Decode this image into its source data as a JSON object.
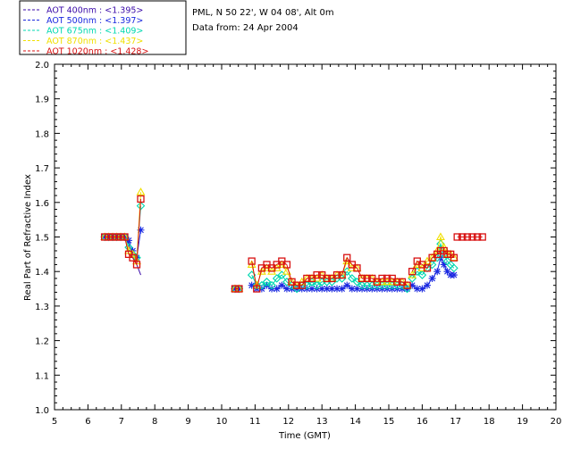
{
  "header": {
    "site_line": "PML, N 50 22', W 04 08', Alt 0m",
    "date_line": "Data from: 24 Apr 2004"
  },
  "legend": [
    {
      "label": "AOT  400nm : <1.395>",
      "color": "#3a0aa8",
      "marker": "line"
    },
    {
      "label": "AOT  500nm : <1.397>",
      "color": "#1a28e0",
      "marker": "star"
    },
    {
      "label": "AOT  675nm : <1.409>",
      "color": "#00d8b0",
      "marker": "diamond"
    },
    {
      "label": "AOT  870nm : <1.437>",
      "color": "#f0e000",
      "marker": "triangle"
    },
    {
      "label": "AOT 1020nm : <1.428>",
      "color": "#d81010",
      "marker": "square"
    }
  ],
  "chart_data": {
    "type": "line",
    "title": "",
    "xlabel": "Time (GMT)",
    "ylabel": "Real Part of Refractive Index",
    "xlim": [
      5,
      20
    ],
    "ylim": [
      1.0,
      2.0
    ],
    "x_ticks": [
      "5",
      "6",
      "7",
      "8",
      "9",
      "10",
      "11",
      "12",
      "13",
      "14",
      "15",
      "16",
      "17",
      "18",
      "19",
      "20"
    ],
    "y_ticks": [
      "1.0",
      "1.1",
      "1.2",
      "1.3",
      "1.4",
      "1.5",
      "1.6",
      "1.7",
      "1.8",
      "1.9",
      "2.0"
    ],
    "grid": false,
    "legend_position": "top-left outside",
    "series": [
      {
        "name": "AOT  400nm : <1.395>",
        "color": "#3a0aa8",
        "marker": "line",
        "segments": [
          [
            [
              6.5,
              1.5
            ],
            [
              6.62,
              1.5
            ],
            [
              6.74,
              1.5
            ],
            [
              6.86,
              1.5
            ],
            [
              6.98,
              1.5
            ],
            [
              7.1,
              1.5
            ],
            [
              7.22,
              1.48
            ],
            [
              7.34,
              1.44
            ],
            [
              7.46,
              1.42
            ],
            [
              7.58,
              1.39
            ]
          ]
        ]
      },
      {
        "name": "AOT  500nm : <1.397>",
        "color": "#1a28e0",
        "marker": "star",
        "segments": [
          [
            [
              6.5,
              1.5
            ],
            [
              6.62,
              1.5
            ],
            [
              6.74,
              1.5
            ],
            [
              6.86,
              1.5
            ],
            [
              6.98,
              1.5
            ],
            [
              7.1,
              1.5
            ],
            [
              7.22,
              1.49
            ],
            [
              7.34,
              1.46
            ],
            [
              7.46,
              1.44
            ],
            [
              7.58,
              1.52
            ]
          ],
          [
            [
              10.4,
              1.35
            ],
            [
              10.52,
              1.35
            ]
          ],
          [
            [
              10.9,
              1.36
            ],
            [
              11.05,
              1.35
            ],
            [
              11.2,
              1.35
            ],
            [
              11.35,
              1.36
            ],
            [
              11.5,
              1.35
            ],
            [
              11.65,
              1.35
            ],
            [
              11.8,
              1.36
            ],
            [
              11.95,
              1.35
            ],
            [
              12.1,
              1.35
            ],
            [
              12.25,
              1.35
            ],
            [
              12.4,
              1.35
            ],
            [
              12.55,
              1.35
            ],
            [
              12.7,
              1.35
            ],
            [
              12.85,
              1.35
            ],
            [
              13.0,
              1.35
            ],
            [
              13.15,
              1.35
            ],
            [
              13.3,
              1.35
            ],
            [
              13.45,
              1.35
            ],
            [
              13.6,
              1.35
            ],
            [
              13.75,
              1.36
            ],
            [
              13.9,
              1.35
            ],
            [
              14.05,
              1.35
            ],
            [
              14.2,
              1.35
            ],
            [
              14.35,
              1.35
            ],
            [
              14.5,
              1.35
            ],
            [
              14.65,
              1.35
            ],
            [
              14.8,
              1.35
            ],
            [
              14.95,
              1.35
            ],
            [
              15.1,
              1.35
            ],
            [
              15.25,
              1.35
            ],
            [
              15.4,
              1.35
            ],
            [
              15.55,
              1.35
            ]
          ],
          [
            [
              15.7,
              1.36
            ],
            [
              15.85,
              1.35
            ],
            [
              16.0,
              1.35
            ],
            [
              16.15,
              1.36
            ],
            [
              16.3,
              1.38
            ],
            [
              16.45,
              1.4
            ],
            [
              16.55,
              1.44
            ],
            [
              16.65,
              1.42
            ],
            [
              16.75,
              1.4
            ],
            [
              16.85,
              1.39
            ],
            [
              16.95,
              1.39
            ]
          ]
        ]
      },
      {
        "name": "AOT  675nm : <1.409>",
        "color": "#00d8b0",
        "marker": "diamond",
        "segments": [
          [
            [
              6.5,
              1.5
            ],
            [
              6.62,
              1.5
            ],
            [
              6.74,
              1.5
            ],
            [
              6.86,
              1.5
            ],
            [
              6.98,
              1.5
            ],
            [
              7.1,
              1.5
            ],
            [
              7.22,
              1.47
            ],
            [
              7.34,
              1.45
            ],
            [
              7.46,
              1.44
            ],
            [
              7.58,
              1.59
            ]
          ],
          [
            [
              10.4,
              1.35
            ],
            [
              10.52,
              1.35
            ]
          ],
          [
            [
              10.9,
              1.39
            ],
            [
              11.05,
              1.36
            ],
            [
              11.2,
              1.36
            ],
            [
              11.35,
              1.37
            ],
            [
              11.5,
              1.36
            ],
            [
              11.65,
              1.38
            ],
            [
              11.8,
              1.39
            ],
            [
              11.95,
              1.37
            ],
            [
              12.1,
              1.36
            ],
            [
              12.25,
              1.35
            ],
            [
              12.4,
              1.36
            ],
            [
              12.55,
              1.36
            ],
            [
              12.7,
              1.37
            ],
            [
              12.85,
              1.36
            ],
            [
              13.0,
              1.37
            ],
            [
              13.15,
              1.37
            ],
            [
              13.3,
              1.37
            ],
            [
              13.45,
              1.38
            ],
            [
              13.6,
              1.38
            ],
            [
              13.75,
              1.4
            ],
            [
              13.9,
              1.38
            ],
            [
              14.05,
              1.37
            ],
            [
              14.2,
              1.36
            ],
            [
              14.35,
              1.36
            ],
            [
              14.5,
              1.36
            ],
            [
              14.65,
              1.36
            ],
            [
              14.8,
              1.36
            ],
            [
              14.95,
              1.36
            ],
            [
              15.1,
              1.36
            ],
            [
              15.25,
              1.36
            ],
            [
              15.4,
              1.36
            ],
            [
              15.55,
              1.35
            ]
          ],
          [
            [
              15.7,
              1.38
            ],
            [
              15.85,
              1.4
            ],
            [
              16.0,
              1.39
            ],
            [
              16.15,
              1.41
            ],
            [
              16.3,
              1.42
            ],
            [
              16.45,
              1.44
            ],
            [
              16.55,
              1.48
            ],
            [
              16.65,
              1.45
            ],
            [
              16.75,
              1.43
            ],
            [
              16.85,
              1.42
            ],
            [
              16.95,
              1.41
            ]
          ]
        ]
      },
      {
        "name": "AOT  870nm : <1.437>",
        "color": "#f0e000",
        "marker": "triangle",
        "segments": [
          [
            [
              6.5,
              1.5
            ],
            [
              6.62,
              1.5
            ],
            [
              6.74,
              1.5
            ],
            [
              6.86,
              1.5
            ],
            [
              6.98,
              1.5
            ],
            [
              7.1,
              1.5
            ],
            [
              7.22,
              1.46
            ],
            [
              7.34,
              1.45
            ],
            [
              7.46,
              1.43
            ],
            [
              7.58,
              1.63
            ]
          ],
          [
            [
              10.4,
              1.35
            ],
            [
              10.52,
              1.35
            ]
          ],
          [
            [
              10.9,
              1.42
            ],
            [
              11.05,
              1.36
            ],
            [
              11.2,
              1.4
            ],
            [
              11.35,
              1.41
            ],
            [
              11.5,
              1.4
            ],
            [
              11.65,
              1.41
            ],
            [
              11.8,
              1.42
            ],
            [
              11.95,
              1.4
            ],
            [
              12.1,
              1.37
            ],
            [
              12.25,
              1.36
            ],
            [
              12.4,
              1.37
            ],
            [
              12.55,
              1.38
            ],
            [
              12.7,
              1.38
            ],
            [
              12.85,
              1.38
            ],
            [
              13.0,
              1.39
            ],
            [
              13.15,
              1.38
            ],
            [
              13.3,
              1.38
            ],
            [
              13.45,
              1.39
            ],
            [
              13.6,
              1.39
            ],
            [
              13.75,
              1.43
            ],
            [
              13.9,
              1.41
            ],
            [
              14.05,
              1.41
            ],
            [
              14.2,
              1.38
            ],
            [
              14.35,
              1.38
            ],
            [
              14.5,
              1.38
            ],
            [
              14.65,
              1.37
            ],
            [
              14.8,
              1.37
            ],
            [
              14.95,
              1.37
            ],
            [
              15.1,
              1.37
            ],
            [
              15.25,
              1.37
            ],
            [
              15.4,
              1.37
            ],
            [
              15.55,
              1.36
            ]
          ],
          [
            [
              15.7,
              1.39
            ],
            [
              15.85,
              1.42
            ],
            [
              16.0,
              1.41
            ],
            [
              16.15,
              1.43
            ],
            [
              16.3,
              1.44
            ],
            [
              16.45,
              1.46
            ],
            [
              16.55,
              1.5
            ],
            [
              16.65,
              1.47
            ],
            [
              16.75,
              1.45
            ],
            [
              16.85,
              1.45
            ],
            [
              16.95,
              1.44
            ]
          ]
        ]
      },
      {
        "name": "AOT 1020nm : <1.428>",
        "color": "#d81010",
        "marker": "square",
        "segments": [
          [
            [
              6.5,
              1.5
            ],
            [
              6.62,
              1.5
            ],
            [
              6.74,
              1.5
            ],
            [
              6.86,
              1.5
            ],
            [
              6.98,
              1.5
            ],
            [
              7.1,
              1.5
            ],
            [
              7.22,
              1.45
            ],
            [
              7.34,
              1.44
            ],
            [
              7.46,
              1.42
            ],
            [
              7.58,
              1.61
            ]
          ],
          [
            [
              10.4,
              1.35
            ],
            [
              10.52,
              1.35
            ]
          ],
          [
            [
              10.9,
              1.43
            ],
            [
              11.05,
              1.35
            ],
            [
              11.2,
              1.41
            ],
            [
              11.35,
              1.42
            ],
            [
              11.5,
              1.41
            ],
            [
              11.65,
              1.42
            ],
            [
              11.8,
              1.43
            ],
            [
              11.95,
              1.42
            ],
            [
              12.1,
              1.37
            ],
            [
              12.25,
              1.36
            ],
            [
              12.4,
              1.36
            ],
            [
              12.55,
              1.38
            ],
            [
              12.7,
              1.38
            ],
            [
              12.85,
              1.39
            ],
            [
              13.0,
              1.39
            ],
            [
              13.15,
              1.38
            ],
            [
              13.3,
              1.38
            ],
            [
              13.45,
              1.39
            ],
            [
              13.6,
              1.39
            ],
            [
              13.75,
              1.44
            ],
            [
              13.9,
              1.42
            ],
            [
              14.05,
              1.41
            ],
            [
              14.2,
              1.38
            ],
            [
              14.35,
              1.38
            ],
            [
              14.5,
              1.38
            ],
            [
              14.65,
              1.37
            ],
            [
              14.8,
              1.38
            ],
            [
              14.95,
              1.38
            ],
            [
              15.1,
              1.38
            ],
            [
              15.25,
              1.37
            ],
            [
              15.4,
              1.37
            ],
            [
              15.55,
              1.36
            ]
          ],
          [
            [
              15.7,
              1.4
            ],
            [
              15.85,
              1.43
            ],
            [
              16.0,
              1.42
            ],
            [
              16.15,
              1.41
            ],
            [
              16.3,
              1.44
            ],
            [
              16.45,
              1.45
            ],
            [
              16.55,
              1.46
            ],
            [
              16.65,
              1.46
            ],
            [
              16.75,
              1.45
            ],
            [
              16.85,
              1.45
            ],
            [
              16.95,
              1.44
            ]
          ],
          [
            [
              17.05,
              1.5
            ],
            [
              17.2,
              1.5
            ],
            [
              17.35,
              1.5
            ],
            [
              17.5,
              1.5
            ],
            [
              17.65,
              1.5
            ],
            [
              17.8,
              1.5
            ]
          ]
        ]
      }
    ]
  }
}
